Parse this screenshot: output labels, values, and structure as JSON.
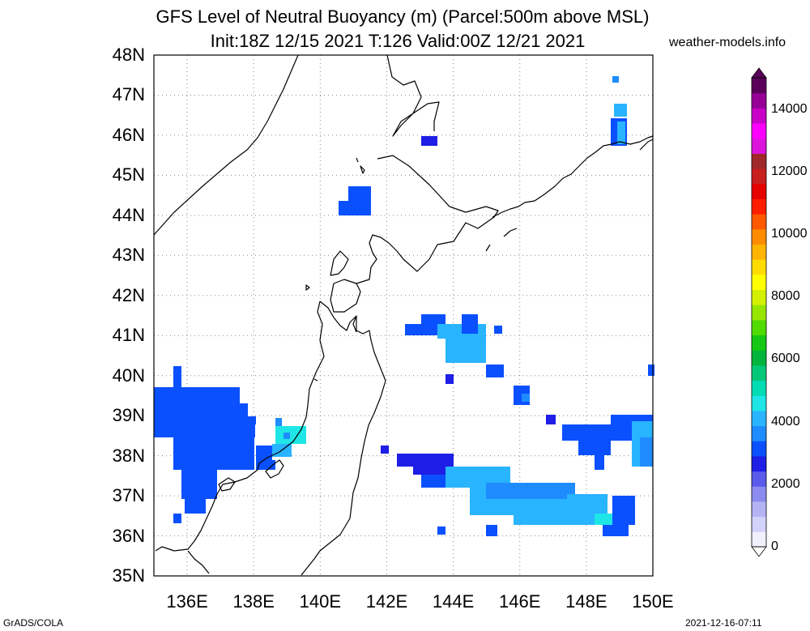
{
  "title": {
    "line1": "GFS Level of Neutral Buoyancy (m) (Parcel:500m above MSL)",
    "line2": "Init:18Z 12/15 2021 T:126 Valid:00Z 12/21 2021"
  },
  "site": "weather-models.info",
  "footer": {
    "left": "GrADS/COLA",
    "right": "2021-12-16-07:11"
  },
  "map": {
    "lat_labels": [
      "48N",
      "47N",
      "46N",
      "45N",
      "44N",
      "43N",
      "42N",
      "41N",
      "40N",
      "39N",
      "38N",
      "37N",
      "36N",
      "35N"
    ],
    "lon_labels": [
      "136E",
      "138E",
      "140E",
      "142E",
      "144E",
      "146E",
      "148E",
      "150E"
    ],
    "lat_range": [
      35,
      48
    ],
    "lon_range": [
      135,
      150
    ],
    "grid": "dotted"
  },
  "colorbar": {
    "labels": [
      "14000",
      "12000",
      "10000",
      "8000",
      "6000",
      "4000",
      "2000",
      "0"
    ],
    "range": [
      0,
      15000
    ],
    "colors": [
      "#f0f0ff",
      "#d2d2fa",
      "#b4b4f5",
      "#8c8cf0",
      "#5a5aeb",
      "#1e1ee6",
      "#0a50ff",
      "#1e8cff",
      "#28b4ff",
      "#1ee6e6",
      "#00dcb4",
      "#00c878",
      "#00b43c",
      "#14c814",
      "#50dc00",
      "#96e600",
      "#d2f000",
      "#ffff00",
      "#ffdc00",
      "#ffb400",
      "#ff8c00",
      "#ff5a00",
      "#ff1e00",
      "#e60000",
      "#c81e1e",
      "#a02828",
      "#dc14dc",
      "#ff00ff",
      "#c800c8",
      "#960096",
      "#5a005a"
    ]
  }
}
